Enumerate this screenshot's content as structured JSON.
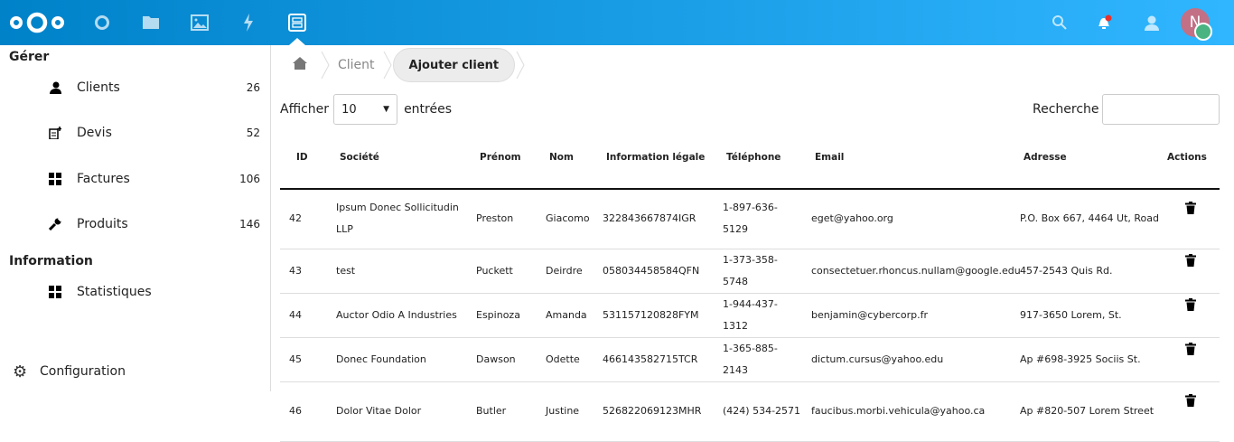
{
  "header": {
    "apps": [
      "dashboard-icon",
      "files-icon",
      "photos-icon",
      "activity-icon",
      "clients-app-icon"
    ],
    "avatar_initial": "N",
    "colors": {
      "brand": "#0082c9",
      "notification": "#e9322d",
      "status": "#49b382",
      "avatar": "#c27085"
    }
  },
  "sidebar": {
    "section_manage": "Gérer",
    "items": [
      {
        "label": "Clients",
        "count": "26"
      },
      {
        "label": "Devis",
        "count": "52"
      },
      {
        "label": "Factures",
        "count": "106"
      },
      {
        "label": "Produits",
        "count": "146"
      }
    ],
    "section_info": "Information",
    "info_items": [
      {
        "label": "Statistiques"
      }
    ],
    "settings": "Configuration"
  },
  "breadcrumb": {
    "items": [
      "Client"
    ],
    "current": "Ajouter client"
  },
  "controls": {
    "show_label": "Afficher",
    "page_size": "10",
    "entries_label": "entrées",
    "search_label": "Recherche",
    "search_value": ""
  },
  "table": {
    "headers": [
      "ID",
      "Société",
      "Prénom",
      "Nom",
      "Information légale",
      "Téléphone",
      "Email",
      "Adresse",
      "Actions"
    ],
    "rows": [
      [
        "42",
        "Ipsum Donec Sollicitudin LLP",
        "Preston",
        "Giacomo",
        "322843667874IGR",
        "1-897-636-5129",
        "eget@yahoo.org",
        "P.O. Box 667, 4464 Ut, Road"
      ],
      [
        "43",
        "test",
        "Puckett",
        "Deirdre",
        "058034458584QFN",
        "1-373-358-5748",
        "consectetuer.rhoncus.nullam@google.edu",
        "457-2543 Quis Rd."
      ],
      [
        "44",
        "Auctor Odio A Industries",
        "Espinoza",
        "Amanda",
        "531157120828FYM",
        "1-944-437-1312",
        "benjamin@cybercorp.fr",
        "917-3650 Lorem, St."
      ],
      [
        "45",
        "Donec Foundation",
        "Dawson",
        "Odette",
        "466143582715TCR",
        "1-365-885-2143",
        "dictum.cursus@yahoo.edu",
        "Ap #698-3925 Sociis St."
      ],
      [
        "46",
        "Dolor Vitae Dolor",
        "Butler",
        "Justine",
        "526822069123MHR",
        "(424) 534-2571",
        "faucibus.morbi.vehicula@yahoo.ca",
        "Ap #820-507 Lorem Street"
      ]
    ]
  }
}
